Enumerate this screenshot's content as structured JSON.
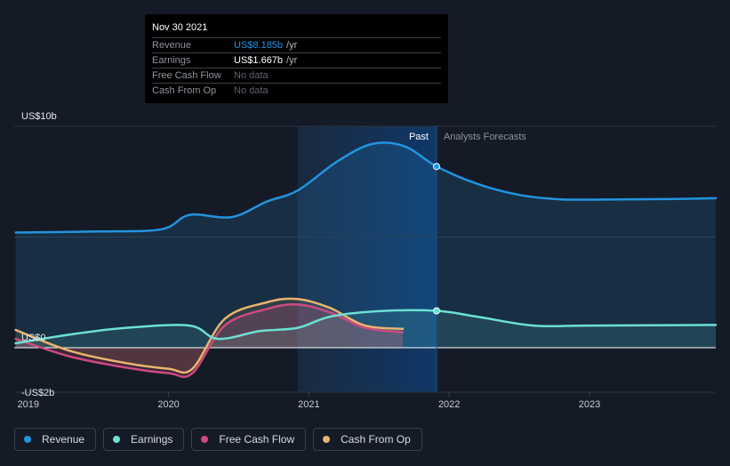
{
  "tooltip": {
    "date": "Nov 30 2021",
    "rows": [
      {
        "label": "Revenue",
        "value": "US$8.185b",
        "unit": "/yr"
      },
      {
        "label": "Earnings",
        "value": "US$1.667b",
        "unit": "/yr"
      },
      {
        "label": "Free Cash Flow",
        "value": "No data",
        "unit": ""
      },
      {
        "label": "Cash From Op",
        "value": "No data",
        "unit": ""
      }
    ]
  },
  "legend": [
    {
      "label": "Revenue",
      "color": "#2394df"
    },
    {
      "label": "Earnings",
      "color": "#6ce0d2"
    },
    {
      "label": "Free Cash Flow",
      "color": "#cc4a80"
    },
    {
      "label": "Cash From Op",
      "color": "#e8b46e"
    }
  ],
  "chart_data": {
    "type": "line",
    "x_type": "date",
    "ylim": [
      -2,
      10
    ],
    "y_ticks": [
      {
        "value": 10,
        "label": "US$10b"
      },
      {
        "value": 0,
        "label": "US$0"
      },
      {
        "value": -2,
        "label": "-US$2b"
      }
    ],
    "x_ticks": [
      {
        "value": 2019.0,
        "label": "2019"
      },
      {
        "value": 2020.0,
        "label": "2020"
      },
      {
        "value": 2021.0,
        "label": "2021"
      },
      {
        "value": 2022.0,
        "label": "2022"
      },
      {
        "value": 2023.0,
        "label": "2023"
      }
    ],
    "xlim": [
      2018.9,
      2023.9
    ],
    "past_label": "Past",
    "forecast_label": "Analysts Forecasts",
    "divider_x": 2021.91,
    "highlight_range": [
      2020.92,
      2021.91
    ],
    "series": [
      {
        "name": "Revenue",
        "color": "#2394df",
        "values": [
          [
            2018.91,
            5.2
          ],
          [
            2019.5,
            5.25
          ],
          [
            2019.95,
            5.35
          ],
          [
            2020.15,
            6.0
          ],
          [
            2020.45,
            5.9
          ],
          [
            2020.7,
            6.6
          ],
          [
            2020.92,
            7.1
          ],
          [
            2021.2,
            8.4
          ],
          [
            2021.45,
            9.2
          ],
          [
            2021.68,
            9.1
          ],
          [
            2021.91,
            8.185
          ],
          [
            2022.2,
            7.4
          ],
          [
            2022.5,
            6.9
          ],
          [
            2022.8,
            6.7
          ],
          [
            2023.2,
            6.7
          ],
          [
            2023.6,
            6.72
          ],
          [
            2023.9,
            6.75
          ]
        ]
      },
      {
        "name": "Earnings",
        "color": "#6ce0d2",
        "values": [
          [
            2018.91,
            0.2
          ],
          [
            2019.3,
            0.6
          ],
          [
            2019.7,
            0.9
          ],
          [
            2020.15,
            1.0
          ],
          [
            2020.35,
            0.4
          ],
          [
            2020.65,
            0.75
          ],
          [
            2020.92,
            0.9
          ],
          [
            2021.15,
            1.4
          ],
          [
            2021.5,
            1.65
          ],
          [
            2021.91,
            1.667
          ],
          [
            2022.2,
            1.4
          ],
          [
            2022.6,
            1.0
          ],
          [
            2023.0,
            1.0
          ],
          [
            2023.9,
            1.03
          ]
        ]
      },
      {
        "name": "Free Cash Flow",
        "color": "#cc4a80",
        "values": [
          [
            2018.91,
            0.4
          ],
          [
            2019.3,
            -0.4
          ],
          [
            2019.7,
            -0.9
          ],
          [
            2020.0,
            -1.15
          ],
          [
            2020.17,
            -1.15
          ],
          [
            2020.4,
            1.0
          ],
          [
            2020.7,
            1.75
          ],
          [
            2020.92,
            1.95
          ],
          [
            2021.15,
            1.6
          ],
          [
            2021.4,
            0.9
          ],
          [
            2021.67,
            0.7
          ]
        ]
      },
      {
        "name": "Cash From Op",
        "color": "#e8b46e",
        "values": [
          [
            2018.91,
            0.8
          ],
          [
            2019.3,
            -0.15
          ],
          [
            2019.7,
            -0.7
          ],
          [
            2020.0,
            -0.95
          ],
          [
            2020.17,
            -0.95
          ],
          [
            2020.4,
            1.3
          ],
          [
            2020.7,
            2.05
          ],
          [
            2020.92,
            2.2
          ],
          [
            2021.15,
            1.8
          ],
          [
            2021.4,
            1.0
          ],
          [
            2021.67,
            0.85
          ]
        ]
      }
    ]
  }
}
